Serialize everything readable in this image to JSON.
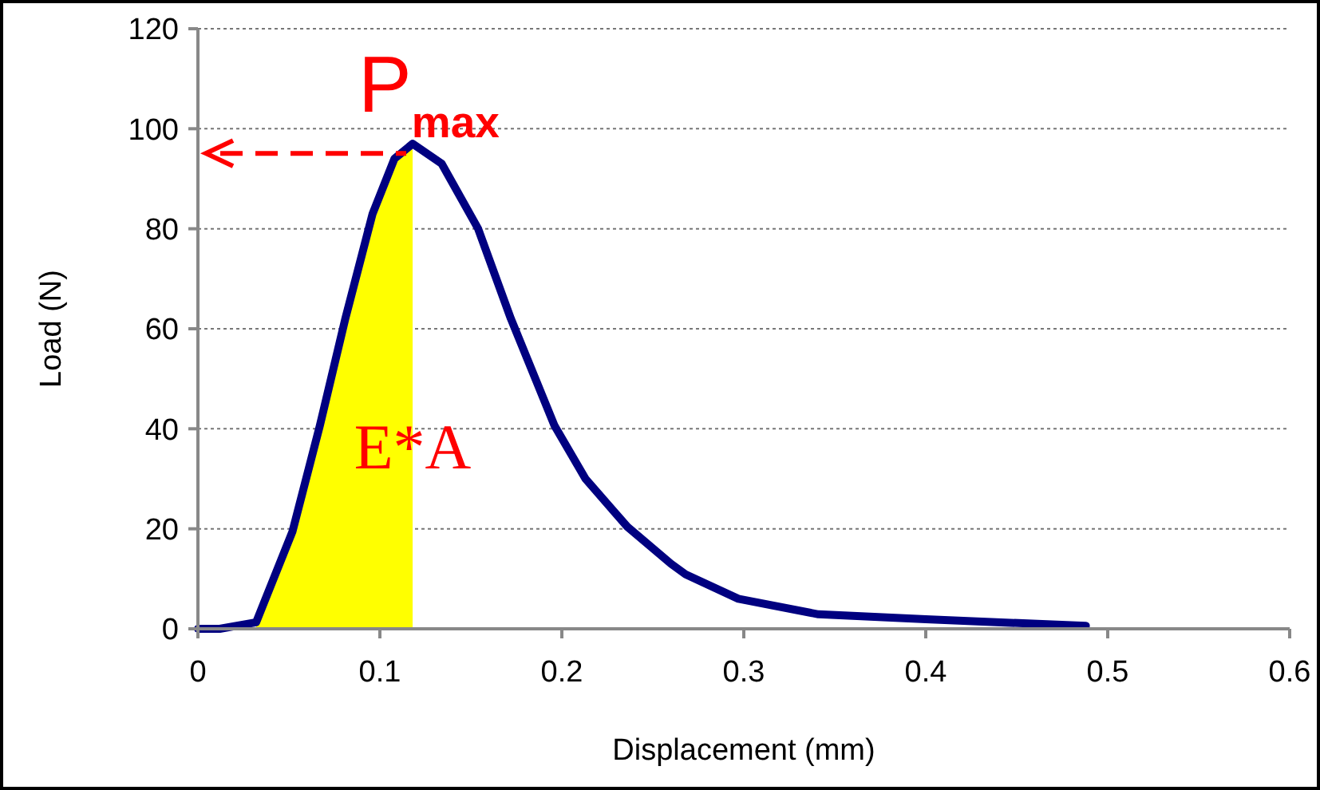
{
  "chart_data": {
    "type": "line",
    "xlabel": "Displacement (mm)",
    "ylabel": "Load (N)",
    "xlim": [
      0,
      0.6
    ],
    "xticks": [
      0,
      0.1,
      0.2,
      0.3,
      0.4,
      0.5,
      0.6
    ],
    "ylim": [
      0,
      120
    ],
    "yticks": [
      0,
      20,
      40,
      60,
      80,
      100,
      120
    ],
    "grid": "y",
    "marker": "none",
    "line_style": "solid",
    "series": [
      {
        "type": "area",
        "color": "#ffff00",
        "x": [
          0.032,
          0.052,
          0.067,
          0.081,
          0.096,
          0.108,
          0.118
        ],
        "values": [
          1.3,
          19.5,
          40.6,
          62,
          83,
          94,
          97
        ]
      },
      {
        "color": "#000080",
        "x": [
          0,
          0.012,
          0.032,
          0.052,
          0.067,
          0.081,
          0.096,
          0.108,
          0.118,
          0.134,
          0.154,
          0.172,
          0.196,
          0.213,
          0.236,
          0.26,
          0.268,
          0.297,
          0.341,
          0.4,
          0.488
        ],
        "values": [
          0,
          0,
          1.3,
          19.5,
          40.6,
          62,
          83,
          94,
          97,
          93,
          80,
          62,
          40.6,
          30,
          20.4,
          13,
          10.9,
          6,
          2.9,
          1.9,
          0.6
        ]
      }
    ],
    "annotations": [
      {
        "text": "P$_{max}$",
        "x": 0.118,
        "y": 97
      },
      {
        "text": "E*A",
        "x": 0.118,
        "y": 32
      }
    ]
  }
}
